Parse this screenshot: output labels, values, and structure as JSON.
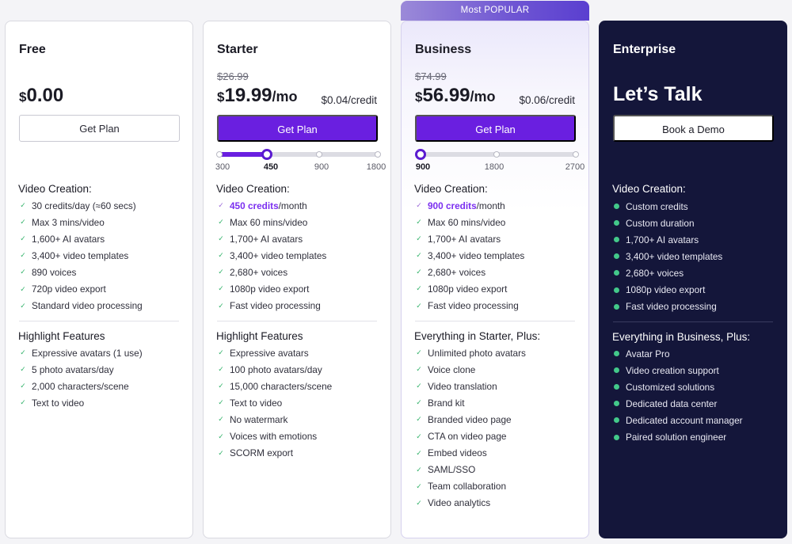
{
  "popular_badge": "Most POPULAR",
  "free": {
    "name": "Free",
    "currency": "$",
    "price": "0.00",
    "button": "Get Plan",
    "section1_title": "Video Creation:",
    "section1": [
      "30 credits/day (≈60 secs)",
      "Max 3 mins/video",
      "1,600+ AI avatars",
      "3,400+ video templates",
      "890  voices",
      "720p video export",
      "Standard video processing"
    ],
    "section2_title": "Highlight Features",
    "section2": [
      "Expressive avatars (1 use)",
      "5 photo avatars/day",
      "2,000 characters/scene",
      "Text to video"
    ]
  },
  "starter": {
    "name": "Starter",
    "old_price": "$26.99",
    "currency": "$",
    "price": "19.99",
    "per": "/mo",
    "per_credit": "$0.04/credit",
    "button": "Get Plan",
    "slider_ticks": [
      "300",
      "450",
      "900",
      "1800"
    ],
    "slider_selected": "450",
    "section1_title": "Video Creation:",
    "credits_highlight": "450 credits",
    "credits_suffix": "/month",
    "section1": [
      "Max 60 mins/video",
      "1,700+ AI avatars",
      "3,400+ video templates",
      "2,680+ voices",
      "1080p video export",
      "Fast video processing"
    ],
    "section2_title": "Highlight Features",
    "section2": [
      "Expressive avatars",
      "100 photo avatars/day",
      "15,000 characters/scene",
      "Text to video",
      "No watermark",
      "Voices with emotions",
      "SCORM export"
    ]
  },
  "business": {
    "name": "Business",
    "old_price": "$74.99",
    "currency": "$",
    "price": "56.99",
    "per": "/mo",
    "per_credit": "$0.06/credit",
    "button": "Get Plan",
    "slider_ticks": [
      "900",
      "1800",
      "2700"
    ],
    "slider_selected": "900",
    "section1_title": "Video Creation:",
    "credits_highlight": "900 credits",
    "credits_suffix": "/month",
    "section1": [
      "Max 60 mins/video",
      "1,700+ AI avatars",
      "3,400+ video templates",
      "2,680+ voices",
      "1080p video export",
      "Fast video processing"
    ],
    "section2_title": "Everything in Starter, Plus:",
    "section2": [
      "Unlimited photo avatars",
      "Voice clone",
      "Video translation",
      "Brand kit",
      "Branded video page",
      "CTA on video page",
      "Embed videos",
      "SAML/SSO",
      "Team collaboration",
      "Video analytics"
    ]
  },
  "enterprise": {
    "name": "Enterprise",
    "headline": "Let’s Talk",
    "button": "Book a Demo",
    "section1_title": "Video Creation:",
    "section1": [
      "Custom credits",
      "Custom duration",
      "1,700+ AI avatars",
      "3,400+ video templates",
      "2,680+ voices",
      "1080p video export",
      "Fast video processing"
    ],
    "section2_title": "Everything in Business, Plus:",
    "section2": [
      "Avatar Pro",
      "Video creation support",
      "Customized solutions",
      "Dedicated data center",
      "Dedicated account manager",
      "Paired solution engineer"
    ]
  },
  "colors": {
    "primary_button": "#6a1fe0",
    "enterprise_bg": "#14163a",
    "check_green": "#34b36b",
    "highlight_purple": "#7b2ff0"
  }
}
